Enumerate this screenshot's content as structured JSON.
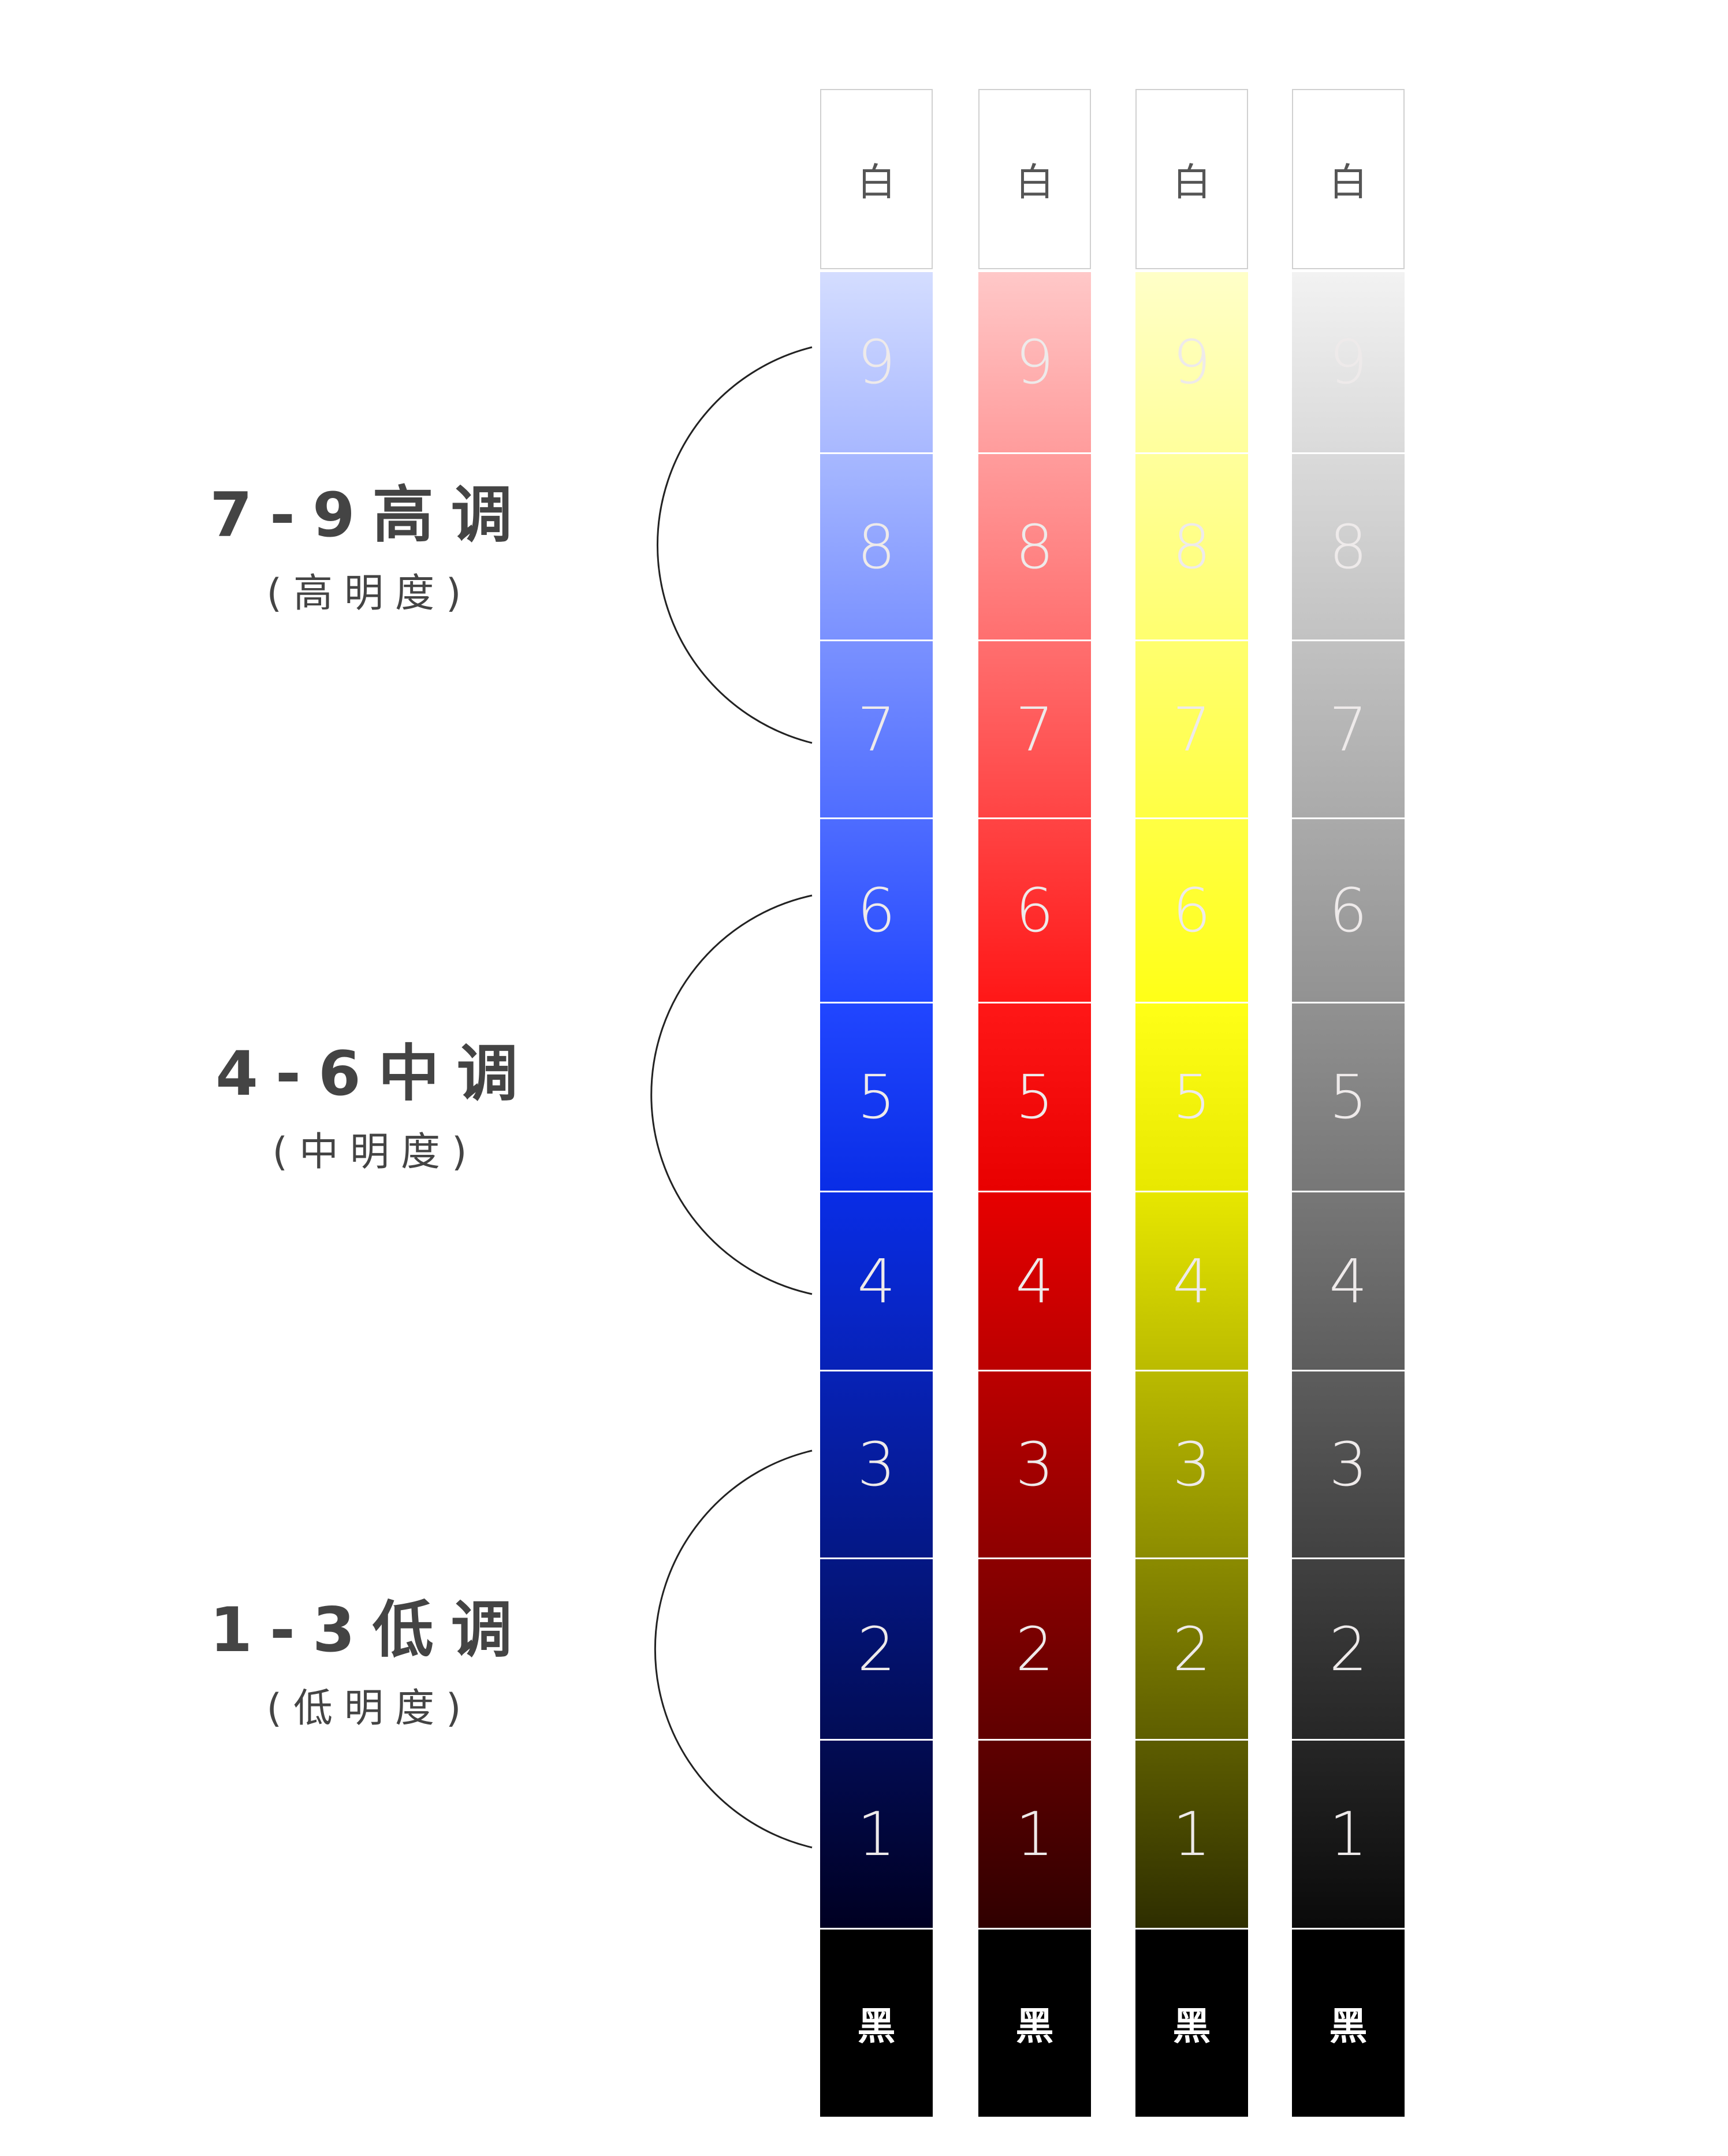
{
  "white_label": "白",
  "black_label": "黑",
  "levels": [
    "9",
    "8",
    "7",
    "6",
    "5",
    "4",
    "3",
    "2",
    "1"
  ],
  "columns": [
    {
      "name": "blue",
      "tint": "#d4ddff",
      "pure": "#0a33ff",
      "dark": "#000022"
    },
    {
      "name": "red",
      "tint": "#ffc8c8",
      "pure": "#ff0000",
      "dark": "#300000"
    },
    {
      "name": "yellow",
      "tint": "#ffffc8",
      "pure": "#ffff00",
      "dark": "#2e2e00"
    },
    {
      "name": "gray",
      "tint": "#f2f2f2",
      "pure": "#858585",
      "dark": "#0a0a0a"
    }
  ],
  "groups": [
    {
      "title": "7-9高调",
      "subtitle": "(高明度)"
    },
    {
      "title": "4-6中调",
      "subtitle": "(中明度)"
    },
    {
      "title": "1-3低调",
      "subtitle": "(低明度)"
    }
  ]
}
